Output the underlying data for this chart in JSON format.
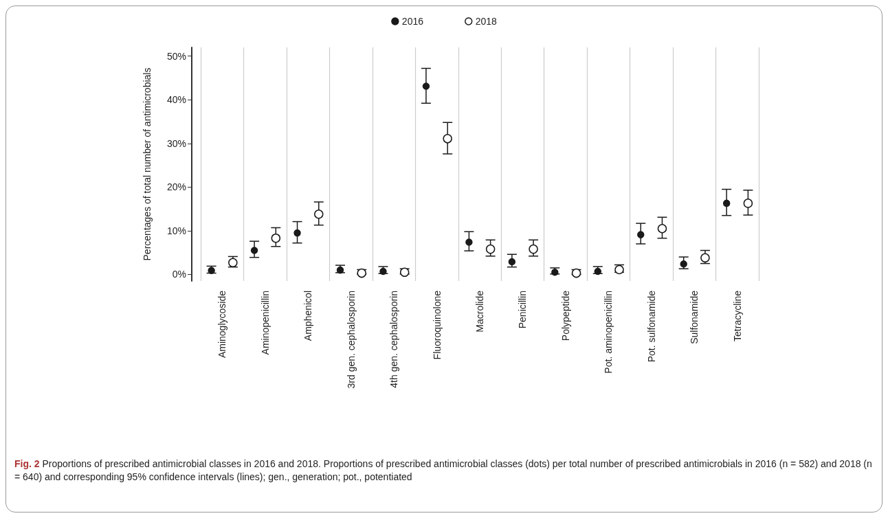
{
  "chart_data": {
    "type": "scatter",
    "ylabel": "Percentages of total number of antimicrobials",
    "categories": [
      "Aminoglycoside",
      "Aminopenicillin",
      "Amphenicol",
      "3rd gen. cephalosporin",
      "4th gen. cephalosporin",
      "Fluoroquinolone",
      "Macrolide",
      "Penicillin",
      "Polypeptide",
      "Pot. aminopenicillin",
      "Pot. sulfonamide",
      "Sulfonamide",
      "Tetracycline"
    ],
    "series": [
      {
        "name": "2016",
        "color": "#1a1a1a",
        "values": [
          0.9,
          5.5,
          9.5,
          1.0,
          0.7,
          43.1,
          7.4,
          2.9,
          0.5,
          0.7,
          9.1,
          2.4,
          16.3
        ],
        "errors": [
          [
            0.3,
            1.9
          ],
          [
            3.9,
            7.6
          ],
          [
            7.2,
            12.1
          ],
          [
            0.4,
            2.1
          ],
          [
            0.2,
            1.8
          ],
          [
            39.2,
            47.2
          ],
          [
            5.4,
            9.8
          ],
          [
            1.7,
            4.6
          ],
          [
            0.1,
            1.5
          ],
          [
            0.2,
            1.8
          ],
          [
            7.0,
            11.7
          ],
          [
            1.3,
            4.0
          ],
          [
            13.5,
            19.5
          ]
        ]
      },
      {
        "name": "2018",
        "color": "#1a1a1a",
        "values": [
          2.7,
          8.3,
          13.8,
          0.3,
          0.5,
          31.1,
          5.8,
          5.8,
          0.3,
          1.1,
          10.5,
          3.8,
          16.3
        ],
        "errors": [
          [
            1.7,
            4.1
          ],
          [
            6.4,
            10.7
          ],
          [
            11.3,
            16.6
          ],
          [
            0.1,
            1.1
          ],
          [
            0.1,
            1.3
          ],
          [
            27.6,
            34.8
          ],
          [
            4.2,
            7.9
          ],
          [
            4.2,
            7.9
          ],
          [
            0.0,
            1.1
          ],
          [
            0.5,
            2.2
          ],
          [
            8.3,
            13.1
          ],
          [
            2.5,
            5.5
          ],
          [
            13.6,
            19.3
          ]
        ]
      }
    ],
    "ylim": [
      -1.5,
      52
    ],
    "yticks": [
      {
        "value": 0,
        "label": "0%"
      },
      {
        "value": 10,
        "label": "10%"
      },
      {
        "value": 20,
        "label": "20%"
      },
      {
        "value": 30,
        "label": "30%"
      },
      {
        "value": 40,
        "label": "40%"
      },
      {
        "value": 50,
        "label": "50%"
      }
    ],
    "grid": "x",
    "legend": "top",
    "marker": "circle",
    "annotations": [
      "Fig. 2",
      "Proportions of prescribed antimicrobial classes in 2016 and 2018. Proportions of prescribed antimicrobial classes (dots) per total number of prescribed antimicrobials in 2016 (n = 582) and 2018 (n = 640) and corresponding 95% confidence intervals (lines); gen., generation; pot., potentiated"
    ]
  }
}
